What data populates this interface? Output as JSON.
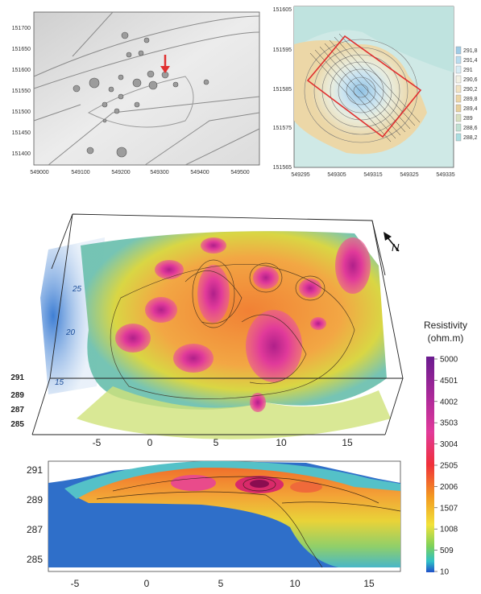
{
  "panel_a": {
    "y_ticks": [
      "151700",
      "151650",
      "151600",
      "151550",
      "151500",
      "151450",
      "151400"
    ],
    "x_ticks": [
      "549000",
      "549100",
      "549200",
      "549300",
      "549400",
      "549500"
    ]
  },
  "panel_b": {
    "y_ticks": [
      "151605",
      "151595",
      "151585",
      "151575",
      "151565"
    ],
    "x_ticks": [
      "549295",
      "549305",
      "549315",
      "549325",
      "549335"
    ],
    "legend": [
      "291,8",
      "291,4",
      "291",
      "290,6",
      "290,2",
      "289,8",
      "289,4",
      "289",
      "288,6",
      "288,2"
    ],
    "legend_colors": [
      "#9fcbe6",
      "#b9dcef",
      "#d8ecf5",
      "#f3f1e4",
      "#f2e3c3",
      "#ecd5a6",
      "#e6cf9c",
      "#d8e0c0",
      "#bfe0d2",
      "#a9dde0"
    ]
  },
  "panel_c": {
    "z_ticks": [
      "291",
      "289",
      "287",
      "285"
    ],
    "y_ticks": [
      "25",
      "20",
      "15"
    ],
    "x_ticks": [
      "-5",
      "0",
      "5",
      "10",
      "15"
    ],
    "north_label": "N"
  },
  "panel_d": {
    "y_ticks": [
      "291",
      "289",
      "287",
      "285"
    ],
    "x_ticks": [
      "-5",
      "0",
      "5",
      "10",
      "15"
    ]
  },
  "colorbar": {
    "title_line1": "Resistivity",
    "title_line2": "(ohm.m)",
    "ticks": [
      "5000",
      "4501",
      "4002",
      "3503",
      "3004",
      "2505",
      "2006",
      "1507",
      "1008",
      "509",
      "10"
    ]
  }
}
